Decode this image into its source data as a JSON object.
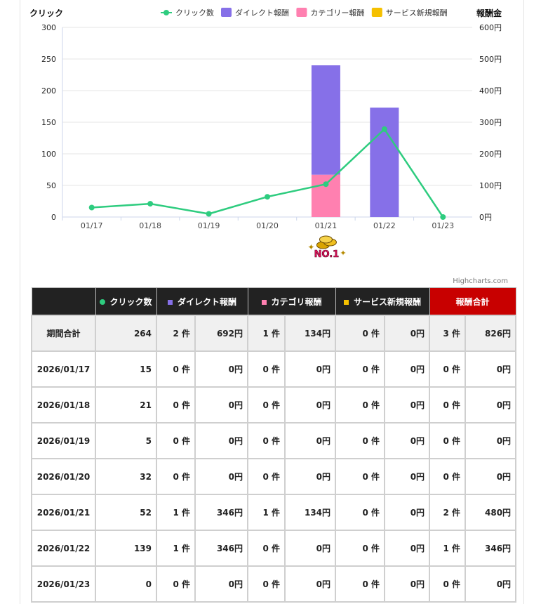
{
  "chart_data": {
    "type": "bar",
    "categories": [
      "01/17",
      "01/18",
      "01/19",
      "01/20",
      "01/21",
      "01/22",
      "01/23"
    ],
    "y_left": {
      "title": "クリック",
      "ticks": [
        "0",
        "50",
        "100",
        "150",
        "200",
        "250",
        "300"
      ],
      "min": 0,
      "max": 300
    },
    "y_right": {
      "title": "報酬金",
      "ticks": [
        "0円",
        "100円",
        "200円",
        "300円",
        "400円",
        "500円",
        "600円"
      ],
      "min": 0,
      "max": 600
    },
    "series": [
      {
        "name": "クリック数",
        "type": "line",
        "axis": "left",
        "color": "#2ecc7f",
        "values": [
          15,
          21,
          5,
          32,
          52,
          139,
          0
        ]
      },
      {
        "name": "ダイレクト報酬",
        "type": "bar",
        "axis": "right",
        "color": "#8670e8",
        "values": [
          0,
          0,
          0,
          0,
          346,
          346,
          0
        ]
      },
      {
        "name": "カテゴリー報酬",
        "type": "bar",
        "axis": "right",
        "color": "#ff80b0",
        "values": [
          0,
          0,
          0,
          0,
          134,
          0,
          0
        ]
      },
      {
        "name": "サービス新規報酬",
        "type": "bar",
        "axis": "right",
        "color": "#f5c000",
        "values": [
          0,
          0,
          0,
          0,
          0,
          0,
          0
        ]
      }
    ],
    "grid": true,
    "legend_position": "top-right",
    "badge": {
      "category": "01/21",
      "text": "NO.1"
    }
  },
  "credit": "Highcharts.com",
  "table": {
    "headers": {
      "clicks": "クリック数",
      "direct": "ダイレクト報酬",
      "category": "カテゴリ報酬",
      "service": "サービス新規報酬",
      "total": "報酬合計"
    },
    "header_colors": {
      "clicks": "#2ecc7f",
      "direct": "#8670e8",
      "category": "#ff80b0",
      "service": "#f5c000"
    },
    "rows": [
      {
        "label": "期間合計",
        "clicks": "264",
        "direct_count": "2 件",
        "direct_amount": "692円",
        "category_count": "1 件",
        "category_amount": "134円",
        "service_count": "0 件",
        "service_amount": "0円",
        "total_count": "3 件",
        "total_amount": "826円"
      },
      {
        "label": "2026/01/17",
        "clicks": "15",
        "direct_count": "0 件",
        "direct_amount": "0円",
        "category_count": "0 件",
        "category_amount": "0円",
        "service_count": "0 件",
        "service_amount": "0円",
        "total_count": "0 件",
        "total_amount": "0円"
      },
      {
        "label": "2026/01/18",
        "clicks": "21",
        "direct_count": "0 件",
        "direct_amount": "0円",
        "category_count": "0 件",
        "category_amount": "0円",
        "service_count": "0 件",
        "service_amount": "0円",
        "total_count": "0 件",
        "total_amount": "0円"
      },
      {
        "label": "2026/01/19",
        "clicks": "5",
        "direct_count": "0 件",
        "direct_amount": "0円",
        "category_count": "0 件",
        "category_amount": "0円",
        "service_count": "0 件",
        "service_amount": "0円",
        "total_count": "0 件",
        "total_amount": "0円"
      },
      {
        "label": "2026/01/20",
        "clicks": "32",
        "direct_count": "0 件",
        "direct_amount": "0円",
        "category_count": "0 件",
        "category_amount": "0円",
        "service_count": "0 件",
        "service_amount": "0円",
        "total_count": "0 件",
        "total_amount": "0円"
      },
      {
        "label": "2026/01/21",
        "clicks": "52",
        "direct_count": "1 件",
        "direct_amount": "346円",
        "category_count": "1 件",
        "category_amount": "134円",
        "service_count": "0 件",
        "service_amount": "0円",
        "total_count": "2 件",
        "total_amount": "480円"
      },
      {
        "label": "2026/01/22",
        "clicks": "139",
        "direct_count": "1 件",
        "direct_amount": "346円",
        "category_count": "0 件",
        "category_amount": "0円",
        "service_count": "0 件",
        "service_amount": "0円",
        "total_count": "1 件",
        "total_amount": "346円"
      },
      {
        "label": "2026/01/23",
        "clicks": "0",
        "direct_count": "0 件",
        "direct_amount": "0円",
        "category_count": "0 件",
        "category_amount": "0円",
        "service_count": "0 件",
        "service_amount": "0円",
        "total_count": "0 件",
        "total_amount": "0円"
      }
    ]
  }
}
